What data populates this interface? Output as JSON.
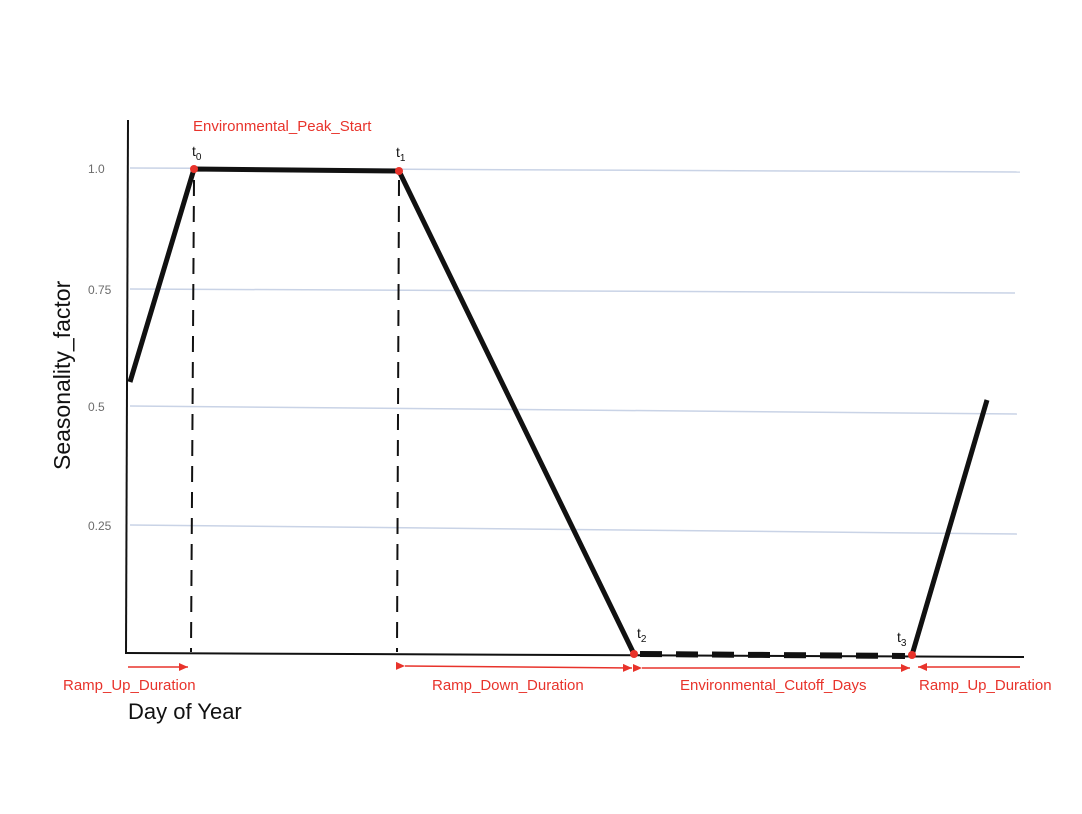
{
  "diagram": {
    "y_axis_label": "Seasonality_factor",
    "x_axis_label": "Day of Year",
    "y_ticks": [
      "1.0",
      "0.75",
      "0.5",
      "0.25"
    ],
    "peak_label": "Environmental_Peak_Start",
    "points": [
      {
        "label": "t",
        "sub": "0"
      },
      {
        "label": "t",
        "sub": "1"
      },
      {
        "label": "t",
        "sub": "2"
      },
      {
        "label": "t",
        "sub": "3"
      }
    ],
    "durations": [
      "Ramp_Up_Duration",
      "Ramp_Down_Duration",
      "Environmental_Cutoff_Days",
      "Ramp_Up_Duration"
    ],
    "colors": {
      "accent": "#e8332b",
      "curve": "#111111",
      "grid": "#c9d3e6"
    }
  }
}
